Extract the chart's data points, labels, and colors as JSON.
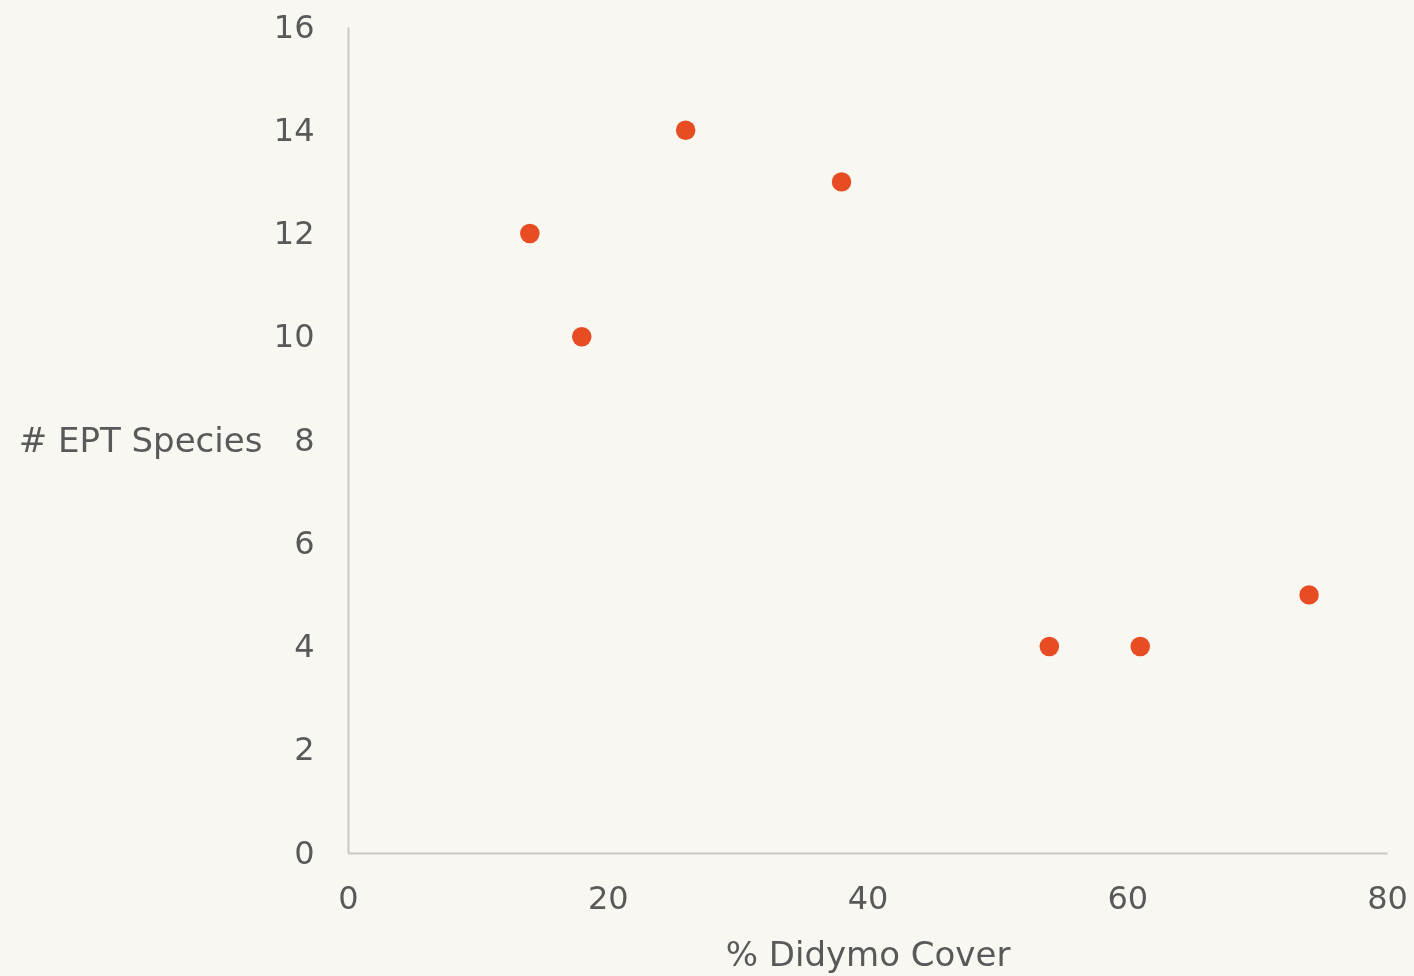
{
  "chart_data": {
    "type": "scatter",
    "xlabel": "% Didymo Cover",
    "ylabel": "# EPT Species",
    "x": [
      14,
      18,
      26,
      38,
      54,
      61,
      74
    ],
    "series": [
      {
        "color": "#e84c22",
        "values": [
          12,
          10,
          14,
          13,
          4,
          4,
          5
        ]
      }
    ],
    "xlim": [
      0,
      80
    ],
    "xticks": [
      0,
      20,
      40,
      60,
      80
    ],
    "ylim": [
      0,
      16
    ],
    "yticks": [
      0,
      2,
      4,
      6,
      8,
      10,
      12,
      14,
      16
    ],
    "grid": false,
    "legend": false,
    "marker": "circle"
  }
}
